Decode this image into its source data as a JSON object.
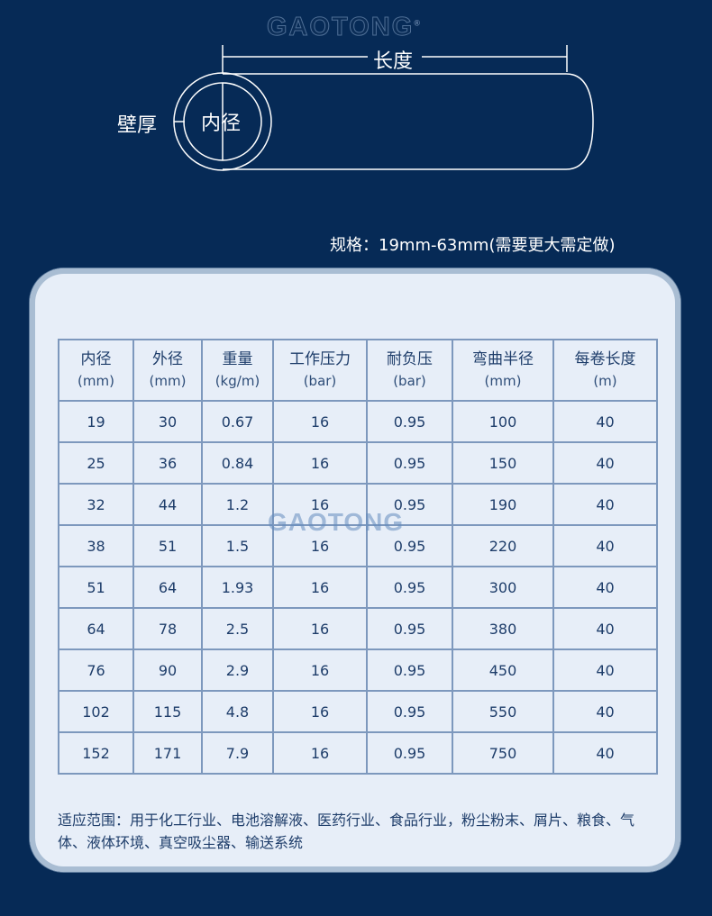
{
  "brand": "GAOTONG",
  "diagram": {
    "length": "长度",
    "wall": "壁厚",
    "inner": "内径"
  },
  "spec": "规格：19mm-63mm(需要更大需定做)",
  "table": {
    "headers": [
      [
        "内径",
        "(mm)"
      ],
      [
        "外径",
        "(mm)"
      ],
      [
        "重量",
        "(kg/m)"
      ],
      [
        "工作压力",
        "(bar)"
      ],
      [
        "耐负压",
        "(bar)"
      ],
      [
        "弯曲半径",
        "(mm)"
      ],
      [
        "每卷长度",
        "(m)"
      ]
    ],
    "rows": [
      [
        "19",
        "30",
        "0.67",
        "16",
        "0.95",
        "100",
        "40"
      ],
      [
        "25",
        "36",
        "0.84",
        "16",
        "0.95",
        "150",
        "40"
      ],
      [
        "32",
        "44",
        "1.2",
        "16",
        "0.95",
        "190",
        "40"
      ],
      [
        "38",
        "51",
        "1.5",
        "16",
        "0.95",
        "220",
        "40"
      ],
      [
        "51",
        "64",
        "1.93",
        "16",
        "0.95",
        "300",
        "40"
      ],
      [
        "64",
        "78",
        "2.5",
        "16",
        "0.95",
        "380",
        "40"
      ],
      [
        "76",
        "90",
        "2.9",
        "16",
        "0.95",
        "450",
        "40"
      ],
      [
        "102",
        "115",
        "4.8",
        "16",
        "0.95",
        "550",
        "40"
      ],
      [
        "152",
        "171",
        "7.9",
        "16",
        "0.95",
        "750",
        "40"
      ]
    ]
  },
  "applications": "适应范围：用于化工行业、电池溶解液、医药行业、食品行业，粉尘粉末、屑片、粮食、气体、液体环境、真空吸尘器、输送系统"
}
